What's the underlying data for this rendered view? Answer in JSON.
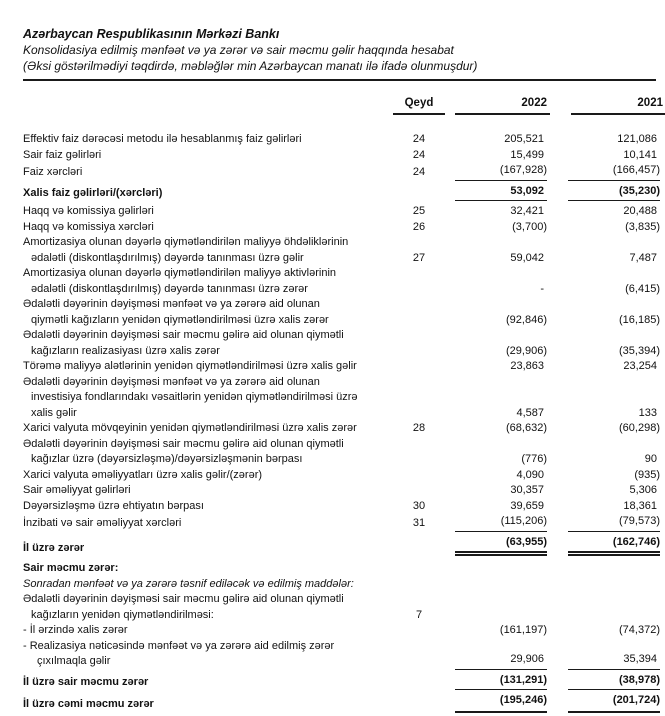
{
  "header": {
    "entity": "Azərbaycan Respublikasının Mərkəzi Bankı",
    "title": "Konsolidasiya edilmiş mənfəət və ya zərər və sair məcmu gəlir haqqında hesabat",
    "measurement_note": "(Əksi göstərilmədiyi təqdirdə, məbləğlər min Azərbaycan manatı ilə ifadə olunmuşdur)"
  },
  "table": {
    "columns": {
      "note": "Qeyd",
      "y2022": "2022",
      "y2021": "2021"
    },
    "rows": [
      {
        "label": "Effektiv faiz dərəcəsi metodu ilə hesablanmış faiz gəlirləri",
        "qeyd": "24",
        "v2022": "205,521",
        "v2021": "121,086",
        "style": "normal",
        "rule": "none"
      },
      {
        "label": "Sair faiz gəlirləri",
        "qeyd": "24",
        "v2022": "15,499",
        "v2021": "10,141",
        "style": "normal",
        "rule": "none"
      },
      {
        "label": "Faiz xərcləri",
        "qeyd": "24",
        "v2022": "(167,928)",
        "v2021": "(166,457)",
        "style": "normal",
        "rule": "single"
      },
      {
        "label": "Xalis faiz gəlirləri/(xərcləri)",
        "qeyd": "",
        "v2022": "53,092",
        "v2021": "(35,230)",
        "style": "bold",
        "rule": "single"
      },
      {
        "label": "Haqq və komissiya gəlirləri",
        "qeyd": "25",
        "v2022": "32,421",
        "v2021": "20,488",
        "style": "normal",
        "rule": "none"
      },
      {
        "label": "Haqq və komissiya xərcləri",
        "qeyd": "26",
        "v2022": "(3,700)",
        "v2021": "(3,835)",
        "style": "normal",
        "rule": "none"
      },
      {
        "label": "Amortizasiya olunan dəyərlə qiymətləndirilən maliyyə öhdəliklərinin\nədalətli (diskontlaşdırılmış) dəyərdə tanınması üzrə gəlir",
        "qeyd": "27",
        "v2022": "59,042",
        "v2021": "7,487",
        "style": "normal",
        "rule": "none"
      },
      {
        "label": "Amortizasiya olunan dəyərlə qiymətləndirilən maliyyə aktivlərinin\nədalətli (diskontlaşdırılmış) dəyərdə tanınması üzrə zərər",
        "qeyd": "",
        "v2022": "-",
        "v2021": "(6,415)",
        "style": "normal",
        "rule": "none"
      },
      {
        "label": "Ədalətli dəyərinin dəyişməsi mənfəət və ya zərərə aid olunan\nqiymətli kağızların yenidən qiymətləndirilməsi üzrə xalis zərər",
        "qeyd": "",
        "v2022": "(92,846)",
        "v2021": "(16,185)",
        "style": "normal",
        "rule": "none"
      },
      {
        "label": "Ədalətli dəyərinin dəyişməsi sair məcmu gəlirə aid olunan qiymətli\nkağızların realizasiyası üzrə xalis zərər",
        "qeyd": "",
        "v2022": "(29,906)",
        "v2021": "(35,394)",
        "style": "normal",
        "rule": "none"
      },
      {
        "label": "Törəmə maliyyə alətlərinin yenidən qiymətləndirilməsi üzrə xalis gəlir",
        "qeyd": "",
        "v2022": "23,863",
        "v2021": "23,254",
        "style": "normal",
        "rule": "none"
      },
      {
        "label": "Ədalətli dəyərinin dəyişməsi mənfəət və ya zərərə aid olunan\ninvestisiya fondlarındakı vəsaitlərin yenidən qiymətləndirilməsi üzrə\nxalis gəlir",
        "qeyd": "",
        "v2022": "4,587",
        "v2021": "133",
        "style": "normal",
        "rule": "none"
      },
      {
        "label": "Xarici valyuta mövqeyinin yenidən qiymətləndirilməsi üzrə xalis zərər",
        "qeyd": "28",
        "v2022": "(68,632)",
        "v2021": "(60,298)",
        "style": "normal",
        "rule": "none"
      },
      {
        "label": "Ədalətli dəyərinin dəyişməsi sair məcmu gəlirə aid olunan qiymətli\nkağızlar üzrə (dəyərsizləşmə)/dəyərsizləşmənin bərpası",
        "qeyd": "",
        "v2022": "(776)",
        "v2021": "90",
        "style": "normal",
        "rule": "none"
      },
      {
        "label": "Xarici valyuta əməliyyatları üzrə xalis gəlir/(zərər)",
        "qeyd": "",
        "v2022": "4,090",
        "v2021": "(935)",
        "style": "normal",
        "rule": "none"
      },
      {
        "label": "Sair əməliyyat gəlirləri",
        "qeyd": "",
        "v2022": "30,357",
        "v2021": "5,306",
        "style": "normal",
        "rule": "none"
      },
      {
        "label": "Dəyərsizləşmə üzrə ehtiyatın bərpası",
        "qeyd": "30",
        "v2022": "39,659",
        "v2021": "18,361",
        "style": "normal",
        "rule": "none"
      },
      {
        "label": "İnzibati və sair əməliyyat xərcləri",
        "qeyd": "31",
        "v2022": "(115,206)",
        "v2021": "(79,573)",
        "style": "normal",
        "rule": "single"
      },
      {
        "label": "İl üzrə zərər",
        "qeyd": "",
        "v2022": "(63,955)",
        "v2021": "(162,746)",
        "style": "bold",
        "rule": "double"
      },
      {
        "label": "Sair məcmu zərər:",
        "qeyd": "",
        "v2022": "",
        "v2021": "",
        "style": "bold",
        "rule": "none"
      },
      {
        "label": "Sonradan mənfəət və ya zərərə təsnif ediləcək və edilmiş maddələr:",
        "qeyd": "",
        "v2022": "",
        "v2021": "",
        "style": "italic",
        "rule": "none"
      },
      {
        "label": "Ədalətli dəyərinin dəyişməsi sair məcmu gəlirə aid olunan qiymətli\nkağızların yenidən qiymətləndirilməsi:",
        "qeyd": "7",
        "v2022": "",
        "v2021": "",
        "style": "normal",
        "rule": "none"
      },
      {
        "label": "- İl ərzində xalis zərər",
        "qeyd": "",
        "v2022": "(161,197)",
        "v2021": "(74,372)",
        "style": "dash",
        "rule": "none"
      },
      {
        "label": "- Realizasiya nəticəsində mənfəət və ya zərərə aid edilmiş zərər\nçıxılmaqla gəlir",
        "qeyd": "",
        "v2022": "29,906",
        "v2021": "35,394",
        "style": "dash",
        "rule": "single"
      },
      {
        "label": "İl üzrə sair məcmu zərər",
        "qeyd": "",
        "v2022": "(131,291)",
        "v2021": "(38,978)",
        "style": "bold",
        "rule": "single"
      },
      {
        "label": "İl üzrə cəmi məcmu zərər",
        "qeyd": "",
        "v2022": "(195,246)",
        "v2021": "(201,724)",
        "style": "bold",
        "rule": "thick"
      }
    ]
  }
}
